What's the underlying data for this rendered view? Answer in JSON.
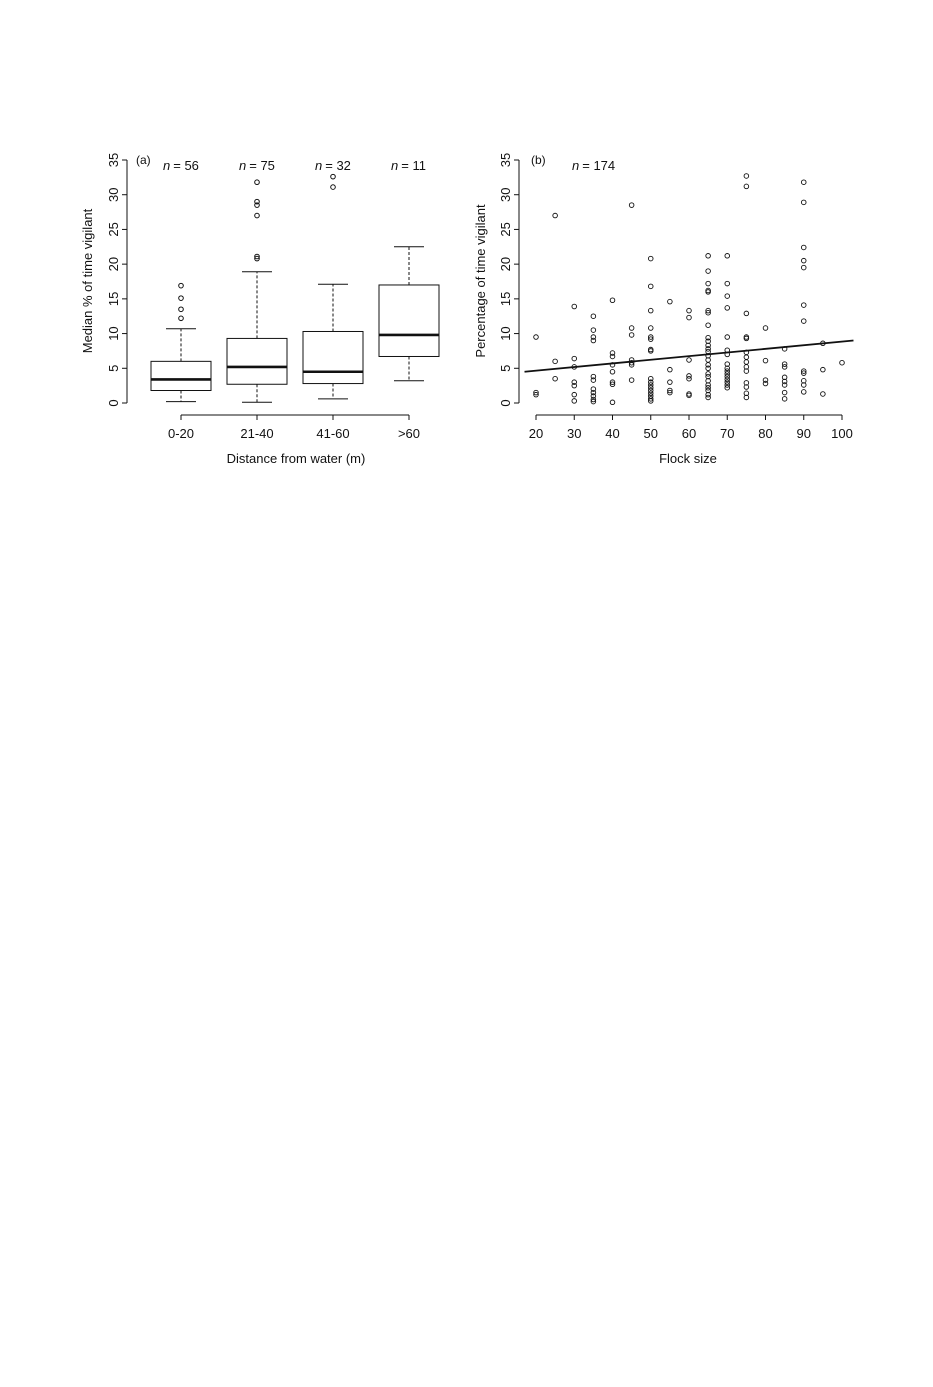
{
  "chart_data": [
    {
      "type": "box",
      "panel_label": "(a)",
      "xlabel": "Distance from water (m)",
      "ylabel": "Median % of time vigilant",
      "ylim": [
        0,
        35
      ],
      "yticks": [
        0,
        5,
        10,
        15,
        20,
        25,
        30,
        35
      ],
      "categories": [
        "0-20",
        "21-40",
        "41-60",
        ">60"
      ],
      "n_prefix": "n",
      "n_labels": [
        "= 56",
        "= 75",
        "= 32",
        "= 11"
      ],
      "boxes": [
        {
          "whisker_low": 0.2,
          "q1": 1.8,
          "median": 3.4,
          "q3": 6.0,
          "whisker_high": 10.7,
          "outliers": [
            12.2,
            13.5,
            15.1,
            16.9
          ]
        },
        {
          "whisker_low": 0.1,
          "q1": 2.7,
          "median": 5.2,
          "q3": 9.3,
          "whisker_high": 18.9,
          "outliers": [
            20.8,
            21.1,
            27.0,
            28.5,
            29.0,
            31.8
          ]
        },
        {
          "whisker_low": 0.6,
          "q1": 2.8,
          "median": 4.5,
          "q3": 10.3,
          "whisker_high": 17.1,
          "outliers": [
            31.1,
            32.6
          ]
        },
        {
          "whisker_low": 3.2,
          "q1": 6.7,
          "median": 9.8,
          "q3": 17.0,
          "whisker_high": 22.5,
          "outliers": []
        }
      ]
    },
    {
      "type": "scatter",
      "panel_label": "(b)",
      "xlabel": "Flock size",
      "ylabel": "Percentage of time vigilant",
      "xlim": [
        17,
        103
      ],
      "ylim": [
        0,
        35
      ],
      "xticks": [
        20,
        30,
        40,
        50,
        60,
        70,
        80,
        90,
        100
      ],
      "yticks": [
        0,
        5,
        10,
        15,
        20,
        25,
        30,
        35
      ],
      "n_prefix": "n",
      "n_label": "= 174",
      "trend_line": {
        "x": [
          17,
          103
        ],
        "y": [
          4.5,
          9.0
        ]
      },
      "points": [
        [
          20,
          9.5
        ],
        [
          20,
          1.5
        ],
        [
          20,
          1.2
        ],
        [
          25,
          27.0
        ],
        [
          25,
          6.0
        ],
        [
          25,
          3.5
        ],
        [
          30,
          13.9
        ],
        [
          30,
          6.4
        ],
        [
          30,
          5.2
        ],
        [
          30,
          3.0
        ],
        [
          30,
          2.5
        ],
        [
          30,
          1.2
        ],
        [
          30,
          0.3
        ],
        [
          35,
          12.5
        ],
        [
          35,
          10.5
        ],
        [
          35,
          9.5
        ],
        [
          35,
          9.0
        ],
        [
          35,
          3.8
        ],
        [
          35,
          3.3
        ],
        [
          35,
          2.0
        ],
        [
          35,
          1.5
        ],
        [
          35,
          1.0
        ],
        [
          35,
          0.5
        ],
        [
          35,
          0.2
        ],
        [
          40,
          14.8
        ],
        [
          40,
          7.2
        ],
        [
          40,
          6.7
        ],
        [
          40,
          5.5
        ],
        [
          40,
          4.5
        ],
        [
          40,
          3.0
        ],
        [
          40,
          2.7
        ],
        [
          40,
          0.1
        ],
        [
          45,
          28.5
        ],
        [
          45,
          10.8
        ],
        [
          45,
          9.8
        ],
        [
          45,
          6.2
        ],
        [
          45,
          5.8
        ],
        [
          45,
          5.5
        ],
        [
          45,
          3.3
        ],
        [
          50,
          20.8
        ],
        [
          50,
          16.8
        ],
        [
          50,
          13.3
        ],
        [
          50,
          10.8
        ],
        [
          50,
          9.5
        ],
        [
          50,
          9.2
        ],
        [
          50,
          7.7
        ],
        [
          50,
          7.5
        ],
        [
          50,
          3.5
        ],
        [
          50,
          3.0
        ],
        [
          50,
          2.6
        ],
        [
          50,
          2.2
        ],
        [
          50,
          1.8
        ],
        [
          50,
          1.4
        ],
        [
          50,
          1.0
        ],
        [
          50,
          0.6
        ],
        [
          50,
          0.3
        ],
        [
          55,
          14.6
        ],
        [
          55,
          4.8
        ],
        [
          55,
          3.0
        ],
        [
          55,
          1.8
        ],
        [
          55,
          1.5
        ],
        [
          60,
          13.3
        ],
        [
          60,
          12.3
        ],
        [
          60,
          6.2
        ],
        [
          60,
          3.9
        ],
        [
          60,
          3.5
        ],
        [
          60,
          1.3
        ],
        [
          60,
          1.1
        ],
        [
          65,
          21.2
        ],
        [
          65,
          19.0
        ],
        [
          65,
          17.2
        ],
        [
          65,
          16.2
        ],
        [
          65,
          16.0
        ],
        [
          65,
          13.3
        ],
        [
          65,
          13.0
        ],
        [
          65,
          11.2
        ],
        [
          65,
          9.4
        ],
        [
          65,
          8.9
        ],
        [
          65,
          8.3
        ],
        [
          65,
          7.8
        ],
        [
          65,
          7.4
        ],
        [
          65,
          6.8
        ],
        [
          65,
          6.2
        ],
        [
          65,
          5.5
        ],
        [
          65,
          5.0
        ],
        [
          65,
          4.2
        ],
        [
          65,
          3.8
        ],
        [
          65,
          3.2
        ],
        [
          65,
          2.6
        ],
        [
          65,
          2.2
        ],
        [
          65,
          1.8
        ],
        [
          65,
          1.2
        ],
        [
          65,
          0.8
        ],
        [
          70,
          21.2
        ],
        [
          70,
          17.2
        ],
        [
          70,
          15.4
        ],
        [
          70,
          13.7
        ],
        [
          70,
          9.5
        ],
        [
          70,
          7.6
        ],
        [
          70,
          7.0
        ],
        [
          70,
          5.6
        ],
        [
          70,
          5.0
        ],
        [
          70,
          4.6
        ],
        [
          70,
          4.2
        ],
        [
          70,
          3.8
        ],
        [
          70,
          3.4
        ],
        [
          70,
          3.0
        ],
        [
          70,
          2.6
        ],
        [
          70,
          2.2
        ],
        [
          75,
          32.7
        ],
        [
          75,
          31.2
        ],
        [
          75,
          12.9
        ],
        [
          75,
          9.5
        ],
        [
          75,
          9.3
        ],
        [
          75,
          7.3
        ],
        [
          75,
          6.6
        ],
        [
          75,
          5.9
        ],
        [
          75,
          5.2
        ],
        [
          75,
          4.6
        ],
        [
          75,
          2.9
        ],
        [
          75,
          2.3
        ],
        [
          75,
          1.4
        ],
        [
          75,
          0.8
        ],
        [
          80,
          10.8
        ],
        [
          80,
          6.1
        ],
        [
          80,
          3.3
        ],
        [
          80,
          2.8
        ],
        [
          85,
          7.8
        ],
        [
          85,
          5.6
        ],
        [
          85,
          5.2
        ],
        [
          85,
          3.7
        ],
        [
          85,
          3.1
        ],
        [
          85,
          2.6
        ],
        [
          85,
          1.5
        ],
        [
          85,
          0.6
        ],
        [
          90,
          31.8
        ],
        [
          90,
          28.9
        ],
        [
          90,
          22.4
        ],
        [
          90,
          20.5
        ],
        [
          90,
          19.5
        ],
        [
          90,
          14.1
        ],
        [
          90,
          11.8
        ],
        [
          90,
          4.6
        ],
        [
          90,
          4.3
        ],
        [
          90,
          3.2
        ],
        [
          90,
          2.6
        ],
        [
          90,
          1.6
        ],
        [
          95,
          8.6
        ],
        [
          95,
          4.8
        ],
        [
          95,
          1.3
        ],
        [
          100,
          5.8
        ]
      ]
    }
  ]
}
